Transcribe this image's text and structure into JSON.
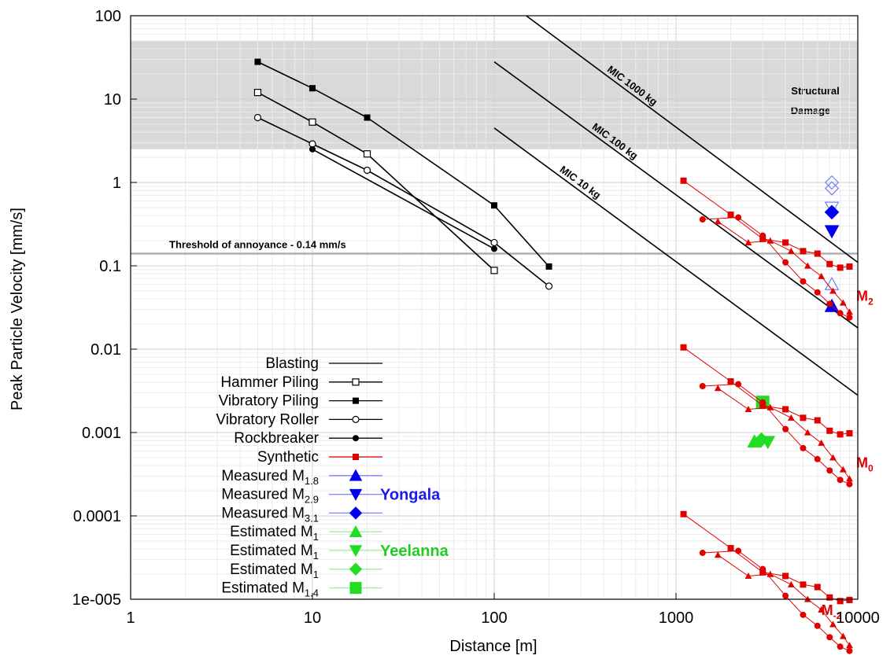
{
  "chart_data": {
    "type": "scatter",
    "xlabel": "Distance [m]",
    "ylabel": "Peak Particle Velocity [mm/s]",
    "xscale": "log",
    "yscale": "log",
    "xlim": [
      1,
      10000
    ],
    "ylim": [
      1e-05,
      100
    ],
    "x_ticks": [
      {
        "value": 1,
        "label": "1"
      },
      {
        "value": 10,
        "label": "10"
      },
      {
        "value": 100,
        "label": "100"
      },
      {
        "value": 1000,
        "label": "1000"
      },
      {
        "value": 10000,
        "label": "10000"
      }
    ],
    "y_ticks": [
      {
        "value": 100,
        "label": "100"
      },
      {
        "value": 10,
        "label": "10"
      },
      {
        "value": 1,
        "label": "1"
      },
      {
        "value": 0.1,
        "label": "0.1"
      },
      {
        "value": 0.01,
        "label": "0.01"
      },
      {
        "value": 0.001,
        "label": "0.001"
      },
      {
        "value": 0.0001,
        "label": "0.0001"
      },
      {
        "value": 1e-05,
        "label": "1e-005"
      }
    ],
    "grid": true,
    "legend_position": "bottom-left",
    "structural_damage_band": {
      "label_line1": "Structural",
      "label_line2": "Damage",
      "y_from": 2.5,
      "y_to": 50,
      "color": "#d9d9d9"
    },
    "threshold": {
      "label": "Threshold of annoyance - 0.14 mm/s",
      "y": 0.14,
      "color": "#b0b0b0"
    },
    "blasting_lines": [
      {
        "label": "MIC 1000 kg",
        "x": [
          150,
          10000
        ],
        "y": [
          100,
          0.11
        ]
      },
      {
        "label": "MIC 100 kg",
        "x": [
          100,
          10000
        ],
        "y": [
          28,
          0.018
        ]
      },
      {
        "label": "MIC 10 kg",
        "x": [
          100,
          10000
        ],
        "y": [
          4.5,
          0.0028
        ]
      }
    ],
    "series": [
      {
        "name": "Blasting",
        "marker": "none",
        "color": "#000000",
        "x": [],
        "y": []
      },
      {
        "name": "Hammer Piling",
        "marker": "square-open",
        "color": "#000000",
        "x": [
          5,
          10,
          20,
          100
        ],
        "y": [
          12,
          5.3,
          2.2,
          0.088
        ]
      },
      {
        "name": "Vibratory Piling",
        "marker": "square",
        "color": "#000000",
        "x": [
          5,
          10,
          20,
          100,
          200
        ],
        "y": [
          28,
          13.5,
          6.0,
          0.53,
          0.098
        ]
      },
      {
        "name": "Vibratory Roller",
        "marker": "circle-open",
        "color": "#000000",
        "x": [
          5,
          10,
          20,
          100,
          200
        ],
        "y": [
          6.0,
          2.9,
          1.4,
          0.19,
          0.057
        ]
      },
      {
        "name": "Rockbreaker",
        "marker": "circle",
        "color": "#000000",
        "x": [
          10,
          100
        ],
        "y": [
          2.5,
          0.16
        ]
      },
      {
        "name": "Synthetic",
        "marker": "square",
        "color": "#e00000",
        "x": [],
        "y": []
      },
      {
        "name": "Measured M1.8",
        "marker": "triangle-up",
        "color": "#0000ee",
        "x": [
          7200,
          7200
        ],
        "y": [
          0.033,
          0.06
        ]
      },
      {
        "name": "Measured M2.9",
        "marker": "triangle-down",
        "color": "#0000ee",
        "x": [
          7200,
          7200
        ],
        "y": [
          0.26,
          0.5
        ]
      },
      {
        "name": "Measured M3.1",
        "marker": "diamond",
        "color": "#0000ee",
        "x": [
          7200,
          7200,
          7200
        ],
        "y": [
          0.44,
          0.85,
          1.0
        ]
      },
      {
        "name": "Estimated M1",
        "marker": "triangle-up",
        "color": "#22dd22",
        "x": [
          2700
        ],
        "y": [
          0.00078
        ]
      },
      {
        "name": "Estimated M1",
        "marker": "triangle-down",
        "color": "#22dd22",
        "x": [
          3200
        ],
        "y": [
          0.00077
        ]
      },
      {
        "name": "Estimated M1",
        "marker": "diamond",
        "color": "#22dd22",
        "x": [
          2950
        ],
        "y": [
          0.00082
        ]
      },
      {
        "name": "Estimated M1.4",
        "marker": "square",
        "color": "#22dd22",
        "x": [
          3000
        ],
        "y": [
          0.0023
        ]
      }
    ],
    "synthetic_groups": [
      {
        "label": "M",
        "sub": "2",
        "scale": 1,
        "square": {
          "x": [
            1100,
            2000,
            3000,
            4000,
            5000,
            6000,
            7000,
            8000,
            9000
          ],
          "y": [
            1.05,
            0.41,
            0.21,
            0.19,
            0.15,
            0.14,
            0.105,
            0.095,
            0.098
          ]
        },
        "circle": {
          "x": [
            1400,
            2200,
            3000,
            4000,
            5000,
            6000,
            7000,
            8000,
            9000
          ],
          "y": [
            0.36,
            0.38,
            0.23,
            0.11,
            0.065,
            0.048,
            0.035,
            0.027,
            0.024
          ]
        },
        "triangle": {
          "x": [
            1700,
            2500,
            3300,
            4300,
            5300,
            6300,
            7300,
            8300,
            9000
          ],
          "y": [
            0.34,
            0.19,
            0.2,
            0.15,
            0.1,
            0.075,
            0.05,
            0.036,
            0.028
          ]
        }
      },
      {
        "label": "M",
        "sub": "0",
        "scale": 0.01,
        "square": {
          "x": [
            1100,
            2000,
            3000,
            4000,
            5000,
            6000,
            7000,
            8000,
            9000
          ],
          "y": [
            1.05,
            0.41,
            0.21,
            0.19,
            0.15,
            0.14,
            0.105,
            0.095,
            0.098
          ]
        },
        "circle": {
          "x": [
            1400,
            2200,
            3000,
            4000,
            5000,
            6000,
            7000,
            8000,
            9000
          ],
          "y": [
            0.36,
            0.38,
            0.23,
            0.11,
            0.065,
            0.048,
            0.035,
            0.027,
            0.024
          ]
        },
        "triangle": {
          "x": [
            1700,
            2500,
            3300,
            4300,
            5300,
            6300,
            7300,
            8300,
            9000
          ],
          "y": [
            0.34,
            0.19,
            0.2,
            0.15,
            0.1,
            0.075,
            0.05,
            0.036,
            0.028
          ]
        }
      },
      {
        "label": "M",
        "sub": "-2",
        "scale": 0.0001,
        "square": {
          "x": [
            1100,
            2000,
            3000,
            4000,
            5000,
            6000,
            7000,
            8000,
            9000
          ],
          "y": [
            1.05,
            0.41,
            0.21,
            0.19,
            0.15,
            0.14,
            0.105,
            0.095,
            0.098
          ]
        },
        "circle": {
          "x": [
            1400,
            2200,
            3000,
            4000,
            5000,
            6000,
            7000,
            8000,
            9000
          ],
          "y": [
            0.36,
            0.38,
            0.23,
            0.11,
            0.065,
            0.048,
            0.035,
            0.027,
            0.024
          ]
        },
        "triangle": {
          "x": [
            1700,
            2500,
            3300,
            4300,
            5300,
            6300,
            7300,
            8300,
            9000
          ],
          "y": [
            0.34,
            0.19,
            0.2,
            0.15,
            0.1,
            0.075,
            0.05,
            0.036,
            0.028
          ]
        }
      }
    ],
    "legend": [
      {
        "text": "Blasting",
        "sub": "",
        "marker": "none",
        "color": "#000000",
        "line": "#000000"
      },
      {
        "text": "Hammer Piling",
        "sub": "",
        "marker": "square-open",
        "color": "#000000",
        "line": "#000000"
      },
      {
        "text": "Vibratory Piling",
        "sub": "",
        "marker": "square",
        "color": "#000000",
        "line": "#000000"
      },
      {
        "text": "Vibratory Roller",
        "sub": "",
        "marker": "circle-open",
        "color": "#000000",
        "line": "#000000"
      },
      {
        "text": "Rockbreaker",
        "sub": "",
        "marker": "circle",
        "color": "#000000",
        "line": "#000000"
      },
      {
        "text": "Synthetic",
        "sub": "",
        "marker": "square",
        "color": "#e00000",
        "line": "#e00000"
      },
      {
        "text": "Measured M",
        "sub": "1.8",
        "marker": "triangle-up",
        "color": "#0000ee",
        "line": "#8080ff"
      },
      {
        "text": "Measured M",
        "sub": "2.9",
        "marker": "triangle-down",
        "color": "#0000ee",
        "line": "#8080ff"
      },
      {
        "text": "Measured M",
        "sub": "3.1",
        "marker": "diamond",
        "color": "#0000ee",
        "line": "#8080ff"
      },
      {
        "text": "Estimated M",
        "sub": "1",
        "marker": "triangle-up",
        "color": "#22dd22",
        "line": "#a0f0a0"
      },
      {
        "text": "Estimated M",
        "sub": "1",
        "marker": "triangle-down",
        "color": "#22dd22",
        "line": "#a0f0a0"
      },
      {
        "text": "Estimated M",
        "sub": "1",
        "marker": "diamond",
        "color": "#22dd22",
        "line": "#a0f0a0"
      },
      {
        "text": "Estimated M",
        "sub": "1.4",
        "marker": "square",
        "color": "#22dd22",
        "line": "#a0f0a0"
      }
    ],
    "group_labels": [
      {
        "text": "Yongala",
        "color": "#1a1aee"
      },
      {
        "text": "Yeelanna",
        "color": "#22cc22"
      }
    ]
  }
}
